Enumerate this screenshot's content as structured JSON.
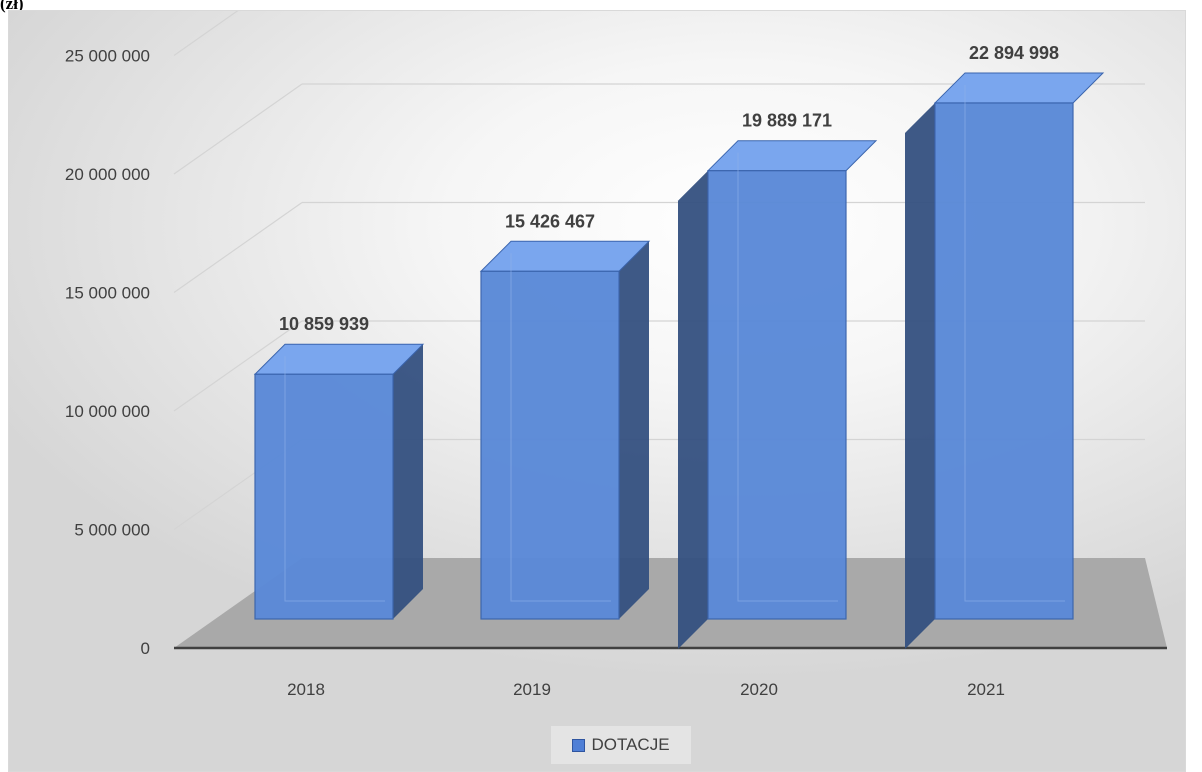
{
  "unit_label": "(zł)",
  "legend": {
    "label": "DOTACJE"
  },
  "colors": {
    "bar_front": "#5b8ad8",
    "bar_side": "#34507f",
    "bar_top": "#7aa6ee",
    "floor": "#a9a9a9"
  },
  "chart_data": {
    "type": "bar",
    "categories": [
      "2018",
      "2019",
      "2020",
      "2021"
    ],
    "series": [
      {
        "name": "DOTACJE",
        "values": [
          10859939,
          15426467,
          19889171,
          22894998
        ]
      }
    ],
    "value_labels": [
      "10 859 939",
      "15 426 467",
      "19 889 171",
      "22 894 998"
    ],
    "y_ticks": [
      0,
      5000000,
      10000000,
      15000000,
      20000000,
      25000000
    ],
    "y_tick_labels": [
      "0",
      "5 000 000",
      "10 000 000",
      "15 000 000",
      "20 000 000",
      "25 000 000"
    ],
    "ylim": [
      0,
      25000000
    ],
    "legend_position": "bottom",
    "style": "3d-column",
    "grid": true
  }
}
